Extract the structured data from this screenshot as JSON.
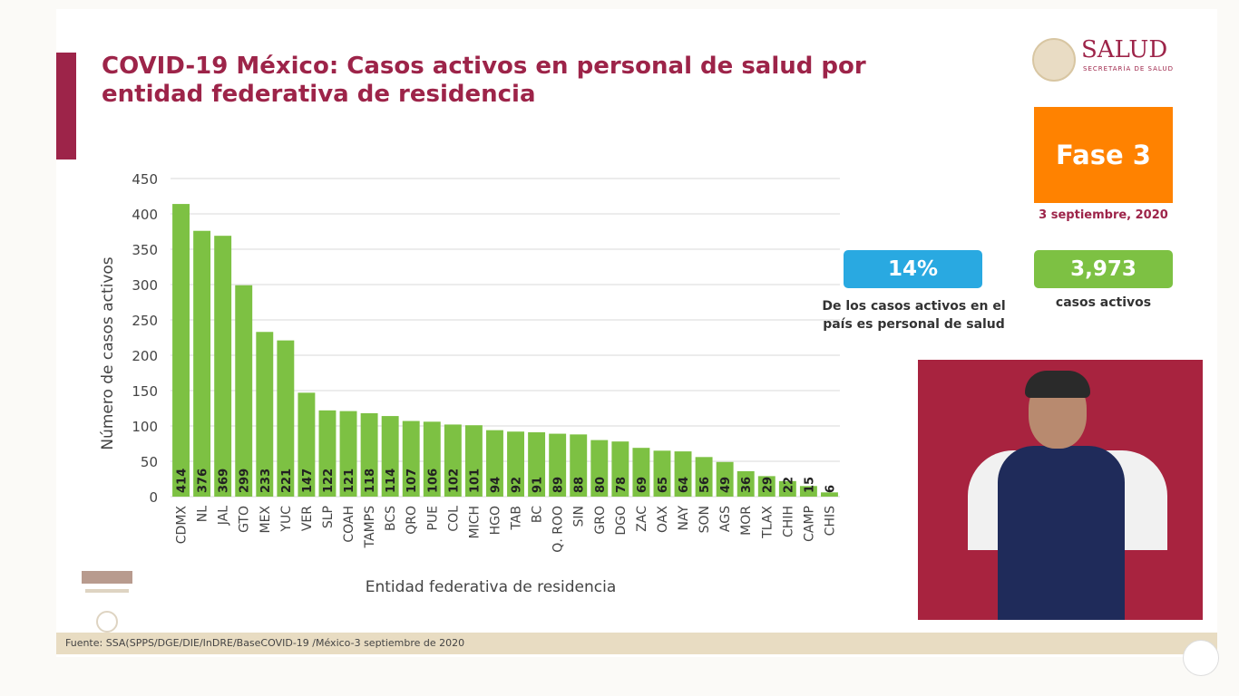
{
  "title": "COVID-19 México: Casos activos en personal de salud por entidad federativa de residencia",
  "logo": {
    "name": "SALUD",
    "subtitle": "SECRETARÍA DE SALUD"
  },
  "phase": {
    "label": "Fase 3",
    "date": "3 septiembre, 2020",
    "color": "#ff8200"
  },
  "stats": {
    "percent": "14%",
    "percent_label": "De los casos activos en el país es personal de salud",
    "total": "3,973",
    "total_label": "casos activos"
  },
  "footer": {
    "source": "Fuente: SSA(SPPS/DGE/DIE/InDRE/BaseCOVID-19 /México-3 septiembre de 2020"
  },
  "chart_data": {
    "type": "bar",
    "title": "",
    "xlabel": "Entidad federativa de residencia",
    "ylabel": "Número de casos activos",
    "ylim": [
      0,
      450
    ],
    "yticks": [
      0,
      50,
      100,
      150,
      200,
      250,
      300,
      350,
      400,
      450
    ],
    "grid": true,
    "bar_color": "#7dc143",
    "categories": [
      "CDMX",
      "NL",
      "JAL",
      "GTO",
      "MEX",
      "YUC",
      "VER",
      "SLP",
      "COAH",
      "TAMPS",
      "BCS",
      "QRO",
      "PUE",
      "COL",
      "MICH",
      "HGO",
      "TAB",
      "BC",
      "Q. ROO",
      "SIN",
      "GRO",
      "DGO",
      "ZAC",
      "OAX",
      "NAY",
      "SON",
      "AGS",
      "MOR",
      "TLAX",
      "CHIH",
      "CAMP",
      "CHIS"
    ],
    "values": [
      414,
      376,
      369,
      299,
      233,
      221,
      147,
      122,
      121,
      118,
      114,
      107,
      106,
      102,
      101,
      94,
      92,
      91,
      89,
      88,
      80,
      78,
      69,
      65,
      64,
      56,
      49,
      36,
      29,
      22,
      15,
      6
    ]
  }
}
